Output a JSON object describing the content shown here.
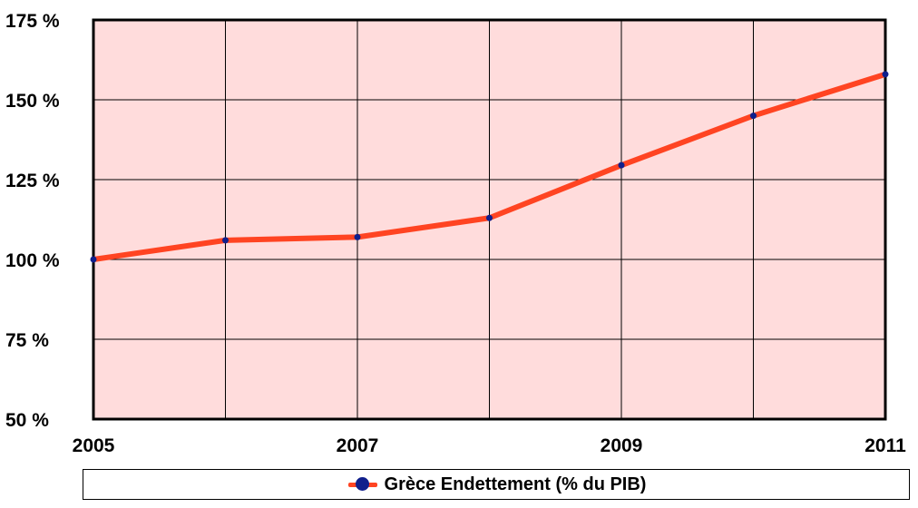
{
  "chart_data": {
    "type": "line",
    "x": [
      "2005",
      "2006",
      "2007",
      "2008",
      "2009",
      "2010",
      "2011"
    ],
    "x_tick_labels": [
      "2005",
      "2007",
      "2009",
      "2011"
    ],
    "y_ticks": [
      50,
      75,
      100,
      125,
      150,
      175
    ],
    "y_tick_labels": [
      "50  %",
      "75  %",
      "100  %",
      "125  %",
      "150  %",
      "175  %"
    ],
    "ylim": [
      50,
      175
    ],
    "grid": true,
    "legend_position": "bottom",
    "series": [
      {
        "name": "Grèce Endettement (% du PIB)",
        "values": [
          100,
          106,
          107,
          113,
          129.5,
          145,
          158
        ],
        "line_color": "#ff4422",
        "marker_color": "#101f8c"
      }
    ],
    "colors": {
      "plot_background": "#ffdcdc",
      "grid": "#000000",
      "frame": "#000000"
    }
  }
}
